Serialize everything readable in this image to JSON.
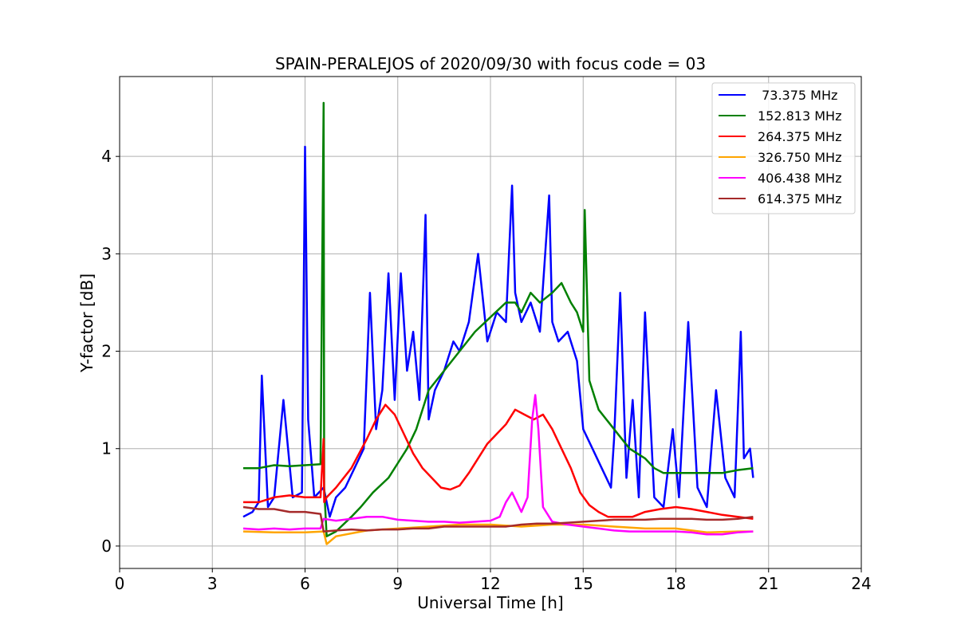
{
  "chart_data": {
    "type": "line",
    "title": "SPAIN-PERALEJOS of 2020/09/30 with focus code = 03",
    "xlabel": "Universal Time [h]",
    "ylabel": "Y-factor [dB]",
    "xlim": [
      0,
      24
    ],
    "ylim": [
      -0.23,
      4.82
    ],
    "xticks": [
      0,
      3,
      6,
      9,
      12,
      15,
      18,
      21,
      24
    ],
    "xtick_labels": [
      "0",
      "3",
      "6",
      "9",
      "12",
      "15",
      "18",
      "21",
      "24"
    ],
    "yticks": [
      0,
      1,
      2,
      3,
      4
    ],
    "ytick_labels": [
      "0",
      "1",
      "2",
      "3",
      "4"
    ],
    "grid": true,
    "legend_position": "top-right",
    "series": [
      {
        "name": " 73.375 MHz",
        "color": "#0000ff",
        "x": [
          4.0,
          4.3,
          4.5,
          4.6,
          4.8,
          5.0,
          5.3,
          5.6,
          5.9,
          6.0,
          6.1,
          6.3,
          6.6,
          6.8,
          7.0,
          7.3,
          7.6,
          7.9,
          8.1,
          8.3,
          8.5,
          8.7,
          8.9,
          9.1,
          9.3,
          9.5,
          9.7,
          9.9,
          10.0,
          10.2,
          10.5,
          10.8,
          11.0,
          11.3,
          11.6,
          11.9,
          12.2,
          12.5,
          12.7,
          12.8,
          13.0,
          13.3,
          13.6,
          13.9,
          14.0,
          14.2,
          14.5,
          14.8,
          15.0,
          15.3,
          15.6,
          15.9,
          16.0,
          16.2,
          16.4,
          16.6,
          16.8,
          17.0,
          17.3,
          17.6,
          17.9,
          18.1,
          18.4,
          18.7,
          19.0,
          19.3,
          19.6,
          19.9,
          20.1,
          20.2,
          20.4,
          20.5
        ],
        "y": [
          0.3,
          0.35,
          0.45,
          1.75,
          0.4,
          0.5,
          1.5,
          0.5,
          0.55,
          4.1,
          1.3,
          0.5,
          0.6,
          0.3,
          0.5,
          0.6,
          0.8,
          1.0,
          2.6,
          1.2,
          1.6,
          2.8,
          1.5,
          2.8,
          1.8,
          2.2,
          1.5,
          3.4,
          1.3,
          1.6,
          1.8,
          2.1,
          2.0,
          2.3,
          3.0,
          2.1,
          2.4,
          2.3,
          3.7,
          2.6,
          2.3,
          2.5,
          2.2,
          3.6,
          2.3,
          2.1,
          2.2,
          1.9,
          1.2,
          1.0,
          0.8,
          0.6,
          1.1,
          2.6,
          0.7,
          1.5,
          0.5,
          2.4,
          0.5,
          0.4,
          1.2,
          0.5,
          2.3,
          0.6,
          0.4,
          1.6,
          0.7,
          0.5,
          2.2,
          0.9,
          1.0,
          0.7
        ]
      },
      {
        "name": "152.813 MHz",
        "color": "#008000",
        "x": [
          4.0,
          4.5,
          5.0,
          5.5,
          6.0,
          6.5,
          6.6,
          6.62,
          6.7,
          7.0,
          7.5,
          7.8,
          8.2,
          8.7,
          9.0,
          9.3,
          9.6,
          9.8,
          10.0,
          10.5,
          11.0,
          11.5,
          12.0,
          12.5,
          12.8,
          13.0,
          13.3,
          13.6,
          14.0,
          14.3,
          14.6,
          14.8,
          15.0,
          15.05,
          15.2,
          15.5,
          16.0,
          16.5,
          17.0,
          17.3,
          17.6,
          18.0,
          18.5,
          19.0,
          19.5,
          20.0,
          20.5
        ],
        "y": [
          0.8,
          0.8,
          0.83,
          0.82,
          0.83,
          0.84,
          4.55,
          0.6,
          0.1,
          0.15,
          0.3,
          0.4,
          0.55,
          0.7,
          0.85,
          1.0,
          1.2,
          1.4,
          1.6,
          1.8,
          2.0,
          2.2,
          2.35,
          2.5,
          2.5,
          2.4,
          2.6,
          2.5,
          2.6,
          2.7,
          2.5,
          2.4,
          2.2,
          3.45,
          1.7,
          1.4,
          1.2,
          1.0,
          0.9,
          0.8,
          0.75,
          0.75,
          0.75,
          0.75,
          0.75,
          0.78,
          0.8
        ]
      },
      {
        "name": "264.375 MHz",
        "color": "#ff0000",
        "x": [
          4.0,
          4.5,
          5.0,
          5.5,
          6.0,
          6.5,
          6.6,
          6.62,
          6.7,
          7.0,
          7.5,
          8.0,
          8.3,
          8.6,
          8.9,
          9.2,
          9.5,
          9.8,
          10.1,
          10.4,
          10.7,
          11.0,
          11.3,
          11.6,
          11.9,
          12.2,
          12.5,
          12.8,
          13.1,
          13.4,
          13.7,
          14.0,
          14.3,
          14.6,
          14.9,
          15.2,
          15.5,
          15.8,
          16.2,
          16.6,
          17.0,
          17.5,
          18.0,
          18.5,
          19.0,
          19.5,
          20.0,
          20.5
        ],
        "y": [
          0.45,
          0.45,
          0.5,
          0.52,
          0.5,
          0.5,
          1.1,
          0.45,
          0.5,
          0.6,
          0.8,
          1.1,
          1.3,
          1.45,
          1.35,
          1.15,
          0.95,
          0.8,
          0.7,
          0.6,
          0.58,
          0.62,
          0.75,
          0.9,
          1.05,
          1.15,
          1.25,
          1.4,
          1.35,
          1.3,
          1.35,
          1.2,
          1.0,
          0.8,
          0.55,
          0.42,
          0.35,
          0.3,
          0.3,
          0.3,
          0.35,
          0.38,
          0.4,
          0.38,
          0.35,
          0.32,
          0.3,
          0.28
        ]
      },
      {
        "name": "326.750 MHz",
        "color": "#ffa500",
        "x": [
          4.0,
          5.0,
          6.0,
          6.6,
          6.7,
          7.0,
          8.0,
          9.0,
          10.0,
          11.0,
          12.0,
          13.0,
          14.0,
          15.0,
          16.0,
          17.0,
          18.0,
          19.0,
          20.0,
          20.5
        ],
        "y": [
          0.15,
          0.14,
          0.14,
          0.15,
          0.02,
          0.1,
          0.16,
          0.18,
          0.2,
          0.22,
          0.22,
          0.2,
          0.22,
          0.22,
          0.2,
          0.18,
          0.18,
          0.14,
          0.15,
          0.15
        ]
      },
      {
        "name": "406.438 MHz",
        "color": "#ff00ff",
        "x": [
          4.0,
          4.5,
          5.0,
          5.5,
          6.0,
          6.5,
          6.6,
          7.0,
          7.5,
          8.0,
          8.5,
          9.0,
          9.5,
          10.0,
          10.5,
          11.0,
          11.5,
          12.0,
          12.3,
          12.5,
          12.7,
          13.0,
          13.2,
          13.35,
          13.45,
          13.55,
          13.7,
          14.0,
          14.5,
          15.0,
          15.5,
          16.0,
          16.5,
          17.0,
          17.5,
          18.0,
          18.5,
          19.0,
          19.5,
          20.0,
          20.5
        ],
        "y": [
          0.18,
          0.17,
          0.18,
          0.17,
          0.18,
          0.18,
          0.28,
          0.26,
          0.28,
          0.3,
          0.3,
          0.27,
          0.26,
          0.25,
          0.25,
          0.24,
          0.25,
          0.26,
          0.3,
          0.45,
          0.55,
          0.35,
          0.5,
          1.3,
          1.55,
          1.2,
          0.4,
          0.25,
          0.22,
          0.2,
          0.18,
          0.16,
          0.15,
          0.15,
          0.15,
          0.15,
          0.14,
          0.12,
          0.12,
          0.14,
          0.15
        ]
      },
      {
        "name": "614.375 MHz",
        "color": "#a52a2a",
        "x": [
          4.0,
          4.5,
          5.0,
          5.5,
          6.0,
          6.5,
          6.6,
          7.0,
          7.5,
          8.0,
          8.5,
          9.0,
          9.5,
          10.0,
          10.5,
          11.0,
          11.5,
          12.0,
          12.5,
          13.0,
          13.5,
          14.0,
          14.5,
          15.0,
          15.5,
          16.0,
          16.5,
          17.0,
          17.5,
          18.0,
          18.5,
          19.0,
          19.5,
          20.0,
          20.5
        ],
        "y": [
          0.4,
          0.38,
          0.38,
          0.35,
          0.35,
          0.33,
          0.15,
          0.16,
          0.17,
          0.16,
          0.17,
          0.17,
          0.18,
          0.18,
          0.2,
          0.2,
          0.2,
          0.2,
          0.2,
          0.22,
          0.23,
          0.23,
          0.24,
          0.25,
          0.26,
          0.27,
          0.27,
          0.27,
          0.28,
          0.28,
          0.28,
          0.27,
          0.27,
          0.28,
          0.3
        ]
      }
    ]
  }
}
